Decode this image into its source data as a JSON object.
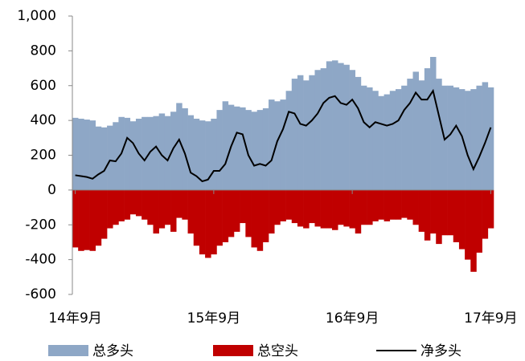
{
  "chart_data": {
    "type": "bar",
    "categories": [
      "14年9月",
      null,
      null,
      null,
      null,
      null,
      null,
      null,
      null,
      null,
      null,
      null,
      null,
      null,
      null,
      null,
      null,
      null,
      null,
      null,
      null,
      null,
      null,
      null,
      "15年9月",
      null,
      null,
      null,
      null,
      null,
      null,
      null,
      null,
      null,
      null,
      null,
      null,
      null,
      null,
      null,
      null,
      null,
      null,
      null,
      null,
      null,
      null,
      null,
      "16年9月",
      null,
      null,
      null,
      null,
      null,
      null,
      null,
      null,
      null,
      null,
      null,
      null,
      null,
      null,
      null,
      null,
      null,
      null,
      null,
      null,
      null,
      null,
      null,
      "17年9月"
    ],
    "series": [
      {
        "name": "总多头",
        "color": "#8ea7c6",
        "values": [
          415,
          410,
          405,
          400,
          365,
          360,
          370,
          390,
          420,
          415,
          395,
          410,
          420,
          420,
          425,
          440,
          425,
          450,
          500,
          470,
          430,
          410,
          400,
          395,
          410,
          460,
          510,
          490,
          480,
          475,
          460,
          450,
          460,
          470,
          520,
          510,
          520,
          570,
          640,
          660,
          630,
          660,
          690,
          700,
          740,
          745,
          730,
          720,
          690,
          650,
          600,
          590,
          570,
          540,
          550,
          570,
          580,
          600,
          640,
          680,
          630,
          700,
          765,
          640,
          600,
          600,
          590,
          580,
          570,
          580,
          600,
          620,
          590
        ]
      },
      {
        "name": "总空头",
        "color": "#c00000",
        "values": [
          -330,
          -350,
          -345,
          -350,
          -320,
          -280,
          -220,
          -200,
          -180,
          -170,
          -140,
          -150,
          -170,
          -200,
          -250,
          -220,
          -200,
          -240,
          -160,
          -170,
          -250,
          -320,
          -370,
          -390,
          -370,
          -320,
          -300,
          -270,
          -240,
          -190,
          -270,
          -330,
          -350,
          -300,
          -250,
          -200,
          -180,
          -170,
          -190,
          -210,
          -220,
          -190,
          -210,
          -220,
          -220,
          -230,
          -200,
          -210,
          -220,
          -250,
          -200,
          -200,
          -180,
          -170,
          -180,
          -170,
          -170,
          -160,
          -170,
          -200,
          -240,
          -290,
          -250,
          -310,
          -260,
          -260,
          -300,
          -340,
          -400,
          -470,
          -360,
          -280,
          -220
        ]
      },
      {
        "name": "净多头",
        "color": "#000000",
        "type": "line",
        "values": [
          85,
          80,
          75,
          65,
          90,
          110,
          170,
          165,
          210,
          300,
          270,
          210,
          170,
          220,
          250,
          200,
          170,
          240,
          290,
          210,
          100,
          80,
          50,
          60,
          110,
          110,
          150,
          250,
          330,
          320,
          200,
          140,
          150,
          140,
          170,
          280,
          350,
          450,
          440,
          380,
          370,
          400,
          440,
          500,
          530,
          540,
          500,
          490,
          520,
          470,
          390,
          360,
          390,
          380,
          370,
          380,
          400,
          460,
          500,
          560,
          520,
          520,
          570,
          430,
          290,
          320,
          370,
          310,
          200,
          120,
          190,
          270,
          360
        ]
      }
    ],
    "ylim": [
      -600,
      1000
    ],
    "yticks": [
      -600,
      -400,
      -200,
      0,
      200,
      400,
      600,
      800,
      {
        "value": 1000,
        "label": "1,000"
      }
    ]
  }
}
